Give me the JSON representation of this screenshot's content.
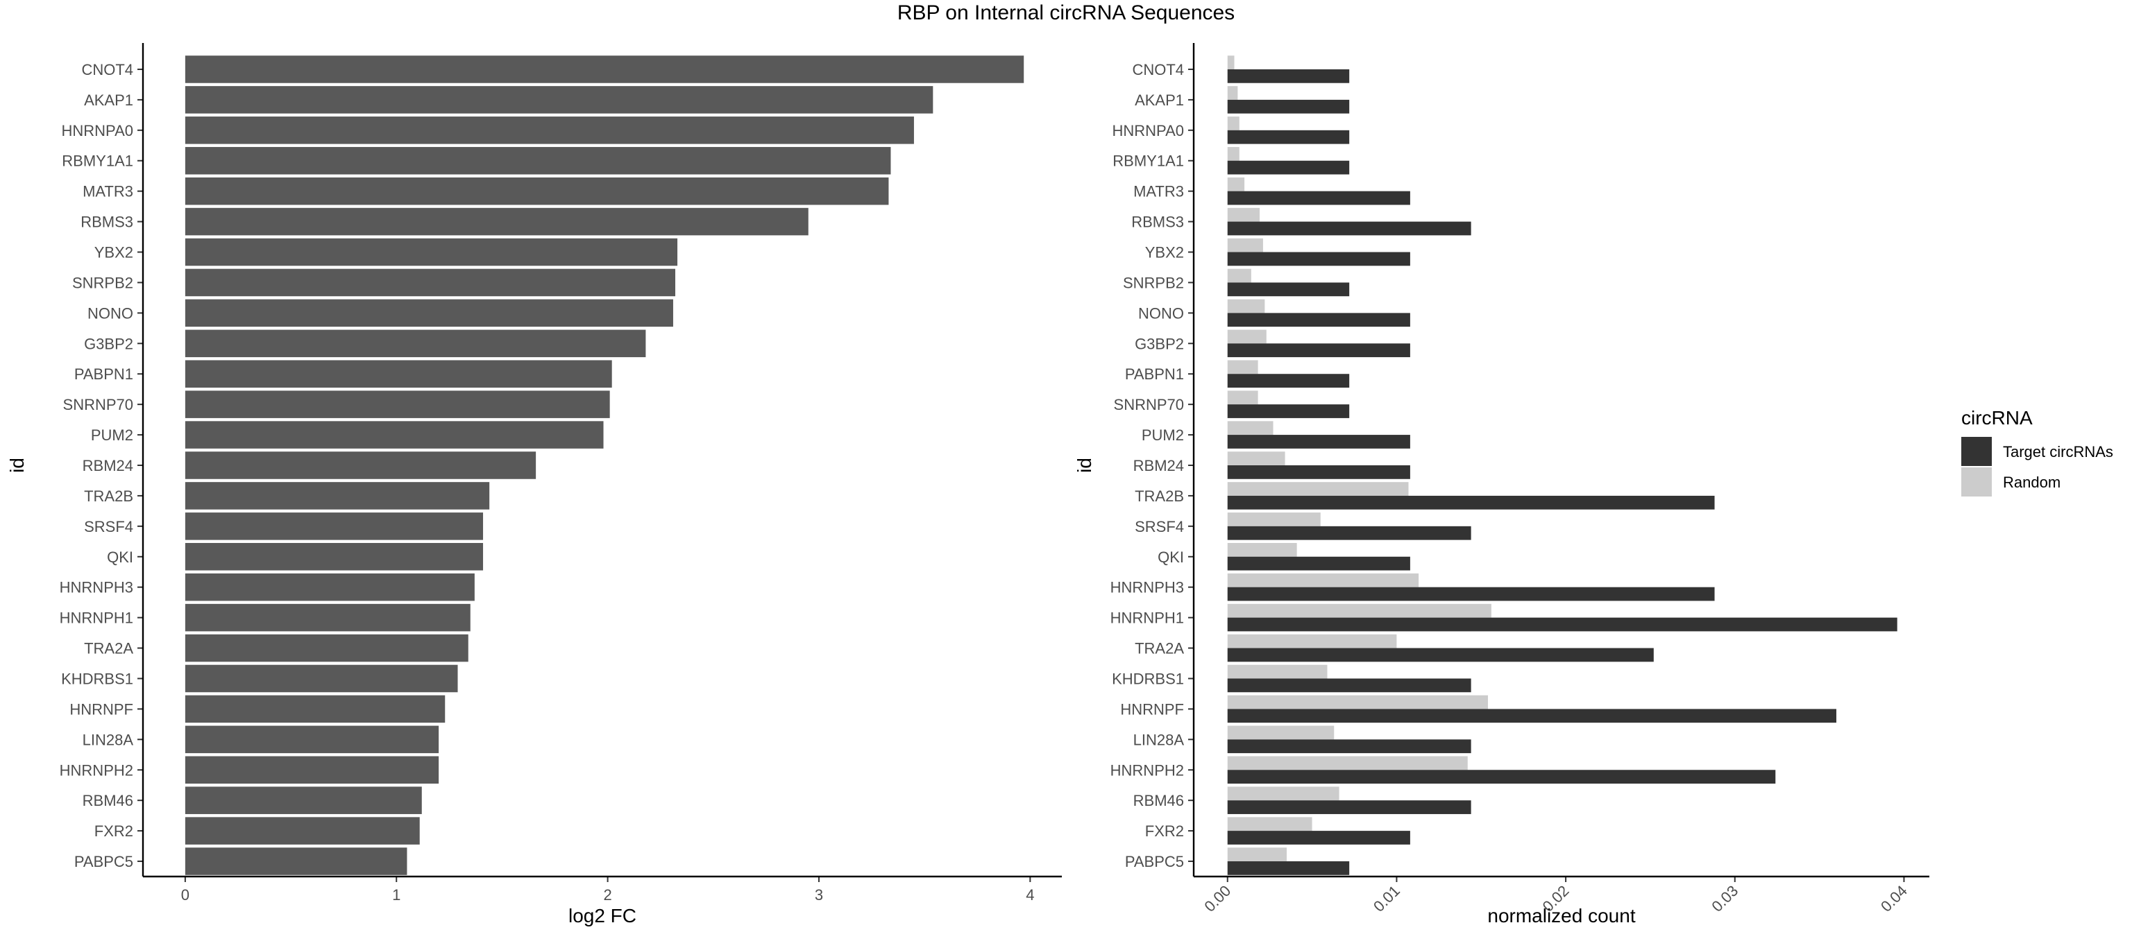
{
  "title": "RBP on Internal circRNA Sequences",
  "colors": {
    "single_bar": "#595959",
    "target": "#333333",
    "random": "#cccccc",
    "axis": "#000000",
    "tick_text": "#4d4d4d"
  },
  "chart_data": [
    {
      "type": "bar",
      "orientation": "horizontal",
      "xlabel": "log2 FC",
      "ylabel": "id",
      "xlim": [
        -0.2,
        4.15
      ],
      "xticks": [
        0,
        1,
        2,
        3,
        4
      ],
      "xtick_labels": [
        "0",
        "1",
        "2",
        "3",
        "4"
      ],
      "grid": false,
      "categories": [
        "CNOT4",
        "AKAP1",
        "HNRNPA0",
        "RBMY1A1",
        "MATR3",
        "RBMS3",
        "YBX2",
        "SNRPB2",
        "NONO",
        "G3BP2",
        "PABPN1",
        "SNRNP70",
        "PUM2",
        "RBM24",
        "TRA2B",
        "SRSF4",
        "QKI",
        "HNRNPH3",
        "HNRNPH1",
        "TRA2A",
        "KHDRBS1",
        "HNRNPF",
        "LIN28A",
        "HNRNPH2",
        "RBM46",
        "FXR2",
        "PABPC5"
      ],
      "values": [
        3.97,
        3.54,
        3.45,
        3.34,
        3.33,
        2.95,
        2.33,
        2.32,
        2.31,
        2.18,
        2.02,
        2.01,
        1.98,
        1.66,
        1.44,
        1.41,
        1.41,
        1.37,
        1.35,
        1.34,
        1.29,
        1.23,
        1.2,
        1.2,
        1.12,
        1.11,
        1.05
      ]
    },
    {
      "type": "bar",
      "orientation": "horizontal",
      "xlabel": "normalized count",
      "ylabel": "id",
      "xlim": [
        -0.002,
        0.0415
      ],
      "xticks": [
        0,
        0.01,
        0.02,
        0.03,
        0.04
      ],
      "xtick_labels": [
        "0.00",
        "0.01",
        "0.02",
        "0.03",
        "0.04"
      ],
      "grid": false,
      "legend_title": "circRNA",
      "legend_position": "right",
      "categories": [
        "CNOT4",
        "AKAP1",
        "HNRNPA0",
        "RBMY1A1",
        "MATR3",
        "RBMS3",
        "YBX2",
        "SNRPB2",
        "NONO",
        "G3BP2",
        "PABPN1",
        "SNRNP70",
        "PUM2",
        "RBM24",
        "TRA2B",
        "SRSF4",
        "QKI",
        "HNRNPH3",
        "HNRNPH1",
        "TRA2A",
        "KHDRBS1",
        "HNRNPF",
        "LIN28A",
        "HNRNPH2",
        "RBM46",
        "FXR2",
        "PABPC5"
      ],
      "series": [
        {
          "name": "Target circRNAs",
          "color": "#333333",
          "values": [
            0.0072,
            0.0072,
            0.0072,
            0.0072,
            0.0108,
            0.0144,
            0.0108,
            0.0072,
            0.0108,
            0.0108,
            0.0072,
            0.0072,
            0.0108,
            0.0108,
            0.0288,
            0.0144,
            0.0108,
            0.0288,
            0.0396,
            0.0252,
            0.0144,
            0.036,
            0.0144,
            0.0324,
            0.0144,
            0.0108,
            0.0072
          ]
        },
        {
          "name": "Random",
          "color": "#cccccc",
          "values": [
            0.0004,
            0.0006,
            0.0007,
            0.0007,
            0.001,
            0.0019,
            0.0021,
            0.0014,
            0.0022,
            0.0023,
            0.0018,
            0.0018,
            0.0027,
            0.0034,
            0.0107,
            0.0055,
            0.0041,
            0.0113,
            0.0156,
            0.01,
            0.0059,
            0.0154,
            0.0063,
            0.0142,
            0.0066,
            0.005,
            0.0035
          ]
        }
      ]
    }
  ]
}
